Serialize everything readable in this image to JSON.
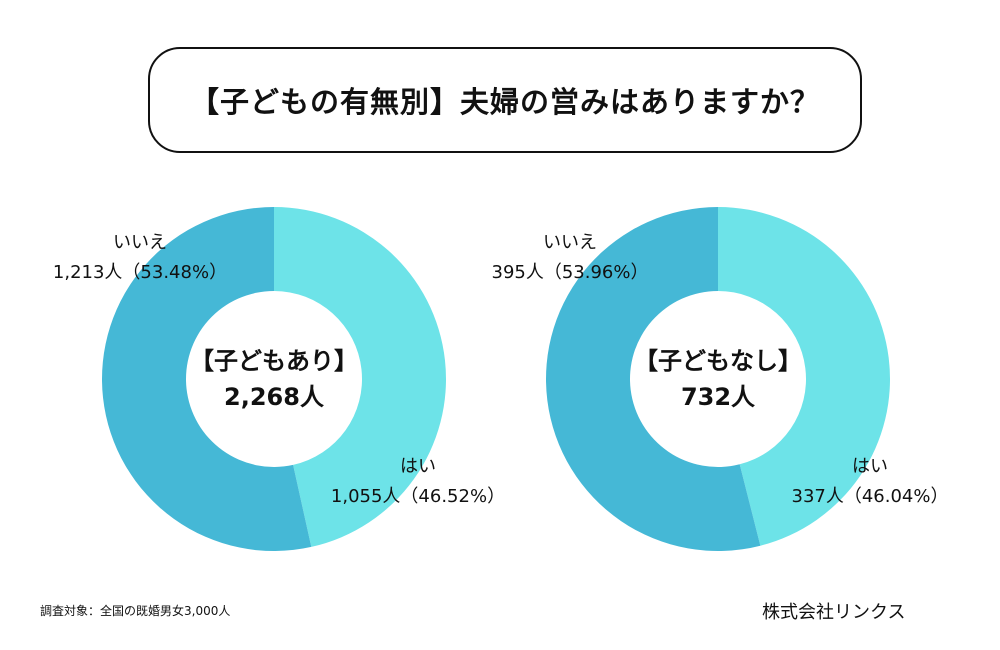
{
  "title": "【子どもの有無別】夫婦の営みはありますか？",
  "colors": {
    "yes": "#6de3e8",
    "no": "#45b8d6"
  },
  "chart_data": [
    {
      "type": "pie",
      "center_label": "【子どもあり】",
      "center_total": "2,268人",
      "slices": [
        {
          "label": "はい",
          "count": 1055,
          "count_text": "1,055人（46.52%）",
          "percent": 46.52
        },
        {
          "label": "いいえ",
          "count": 1213,
          "count_text": "1,213人（53.48%）",
          "percent": 53.48
        }
      ]
    },
    {
      "type": "pie",
      "center_label": "【子どもなし】",
      "center_total": "732人",
      "slices": [
        {
          "label": "はい",
          "count": 337,
          "count_text": "337人（46.04%）",
          "percent": 46.04
        },
        {
          "label": "いいえ",
          "count": 395,
          "count_text": "395人（53.96%）",
          "percent": 53.96
        }
      ]
    }
  ],
  "footer": {
    "note": "調査対象：全国の既婚男女3,000人",
    "company": "株式会社リンクス"
  }
}
